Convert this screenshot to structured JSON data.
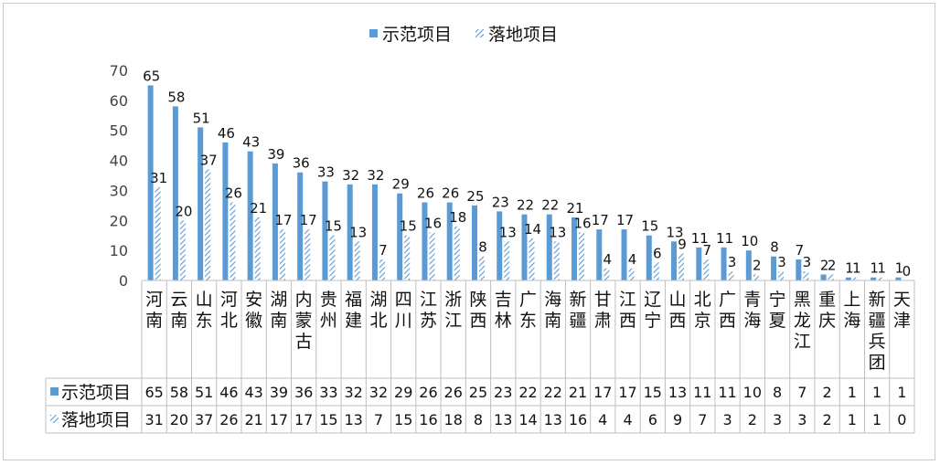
{
  "chart_data": {
    "type": "bar",
    "title": "",
    "ylim": [
      0,
      70
    ],
    "yticks": [
      0,
      10,
      20,
      30,
      40,
      50,
      60,
      70
    ],
    "grid": false,
    "legend_position": "top",
    "data_table": true,
    "categories": [
      "河南",
      "云南",
      "山东",
      "河北",
      "安徽",
      "湖南",
      "内蒙古",
      "贵州",
      "福建",
      "湖北",
      "四川",
      "江苏",
      "浙江",
      "陕西",
      "吉林",
      "广东",
      "海南",
      "新疆",
      "甘肃",
      "江西",
      "辽宁",
      "山西",
      "北京",
      "广西",
      "青海",
      "宁夏",
      "黑龙江",
      "重庆",
      "上海",
      "新疆兵团",
      "天津"
    ],
    "series": [
      {
        "name": "示范项目",
        "pattern": "solid",
        "color": "#5b9bd5",
        "values": [
          65,
          58,
          51,
          46,
          43,
          39,
          36,
          33,
          32,
          32,
          29,
          26,
          26,
          25,
          23,
          22,
          22,
          21,
          17,
          17,
          15,
          13,
          11,
          11,
          10,
          8,
          7,
          2,
          1,
          1,
          1
        ]
      },
      {
        "name": "落地项目",
        "pattern": "hatched",
        "color": "#5b9bd5",
        "values": [
          31,
          20,
          37,
          26,
          21,
          17,
          17,
          15,
          13,
          7,
          15,
          16,
          18,
          8,
          13,
          14,
          13,
          16,
          4,
          4,
          6,
          9,
          7,
          3,
          2,
          3,
          3,
          2,
          1,
          1,
          0
        ]
      }
    ]
  }
}
